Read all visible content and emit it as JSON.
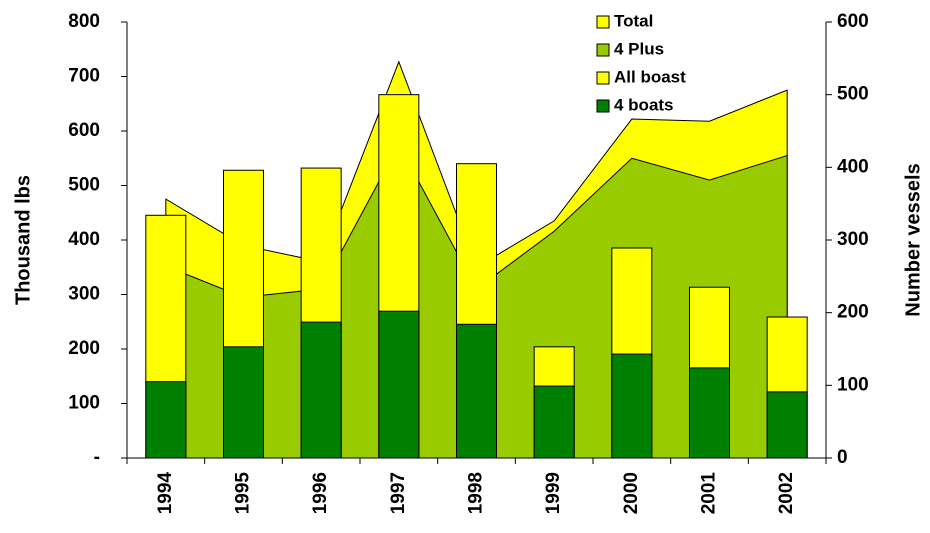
{
  "chart_data": {
    "type": "bar-area",
    "y_label": "Thousand lbs",
    "y2_label": "Number vessels",
    "categories": [
      "1994",
      "1995",
      "1996",
      "1997",
      "1998",
      "1999",
      "2000",
      "2001",
      "2002"
    ],
    "series": [
      {
        "name": "Total",
        "kind": "area",
        "color": "#ffff00",
        "values": [
          475,
          390,
          360,
          727,
          350,
          435,
          622,
          618,
          675
        ]
      },
      {
        "name": "4  Plus",
        "kind": "area",
        "color": "#99cc00",
        "values": [
          352,
          295,
          310,
          575,
          310,
          416,
          550,
          510,
          555
        ]
      },
      {
        "name": "All boast",
        "kind": "bar",
        "axis": "y2",
        "color": "#ffff00",
        "values": [
          334,
          396,
          399,
          500,
          405,
          153,
          289,
          235,
          194
        ]
      },
      {
        "name": "4  boats",
        "kind": "bar",
        "axis": "y2",
        "color": "#008000",
        "values": [
          105,
          153,
          187,
          202,
          184,
          99,
          143,
          124,
          91
        ]
      }
    ],
    "ylim": [
      0,
      800
    ],
    "yticks": [
      {
        "value": 0,
        "label": "-"
      },
      100,
      200,
      300,
      400,
      500,
      600,
      700,
      800
    ],
    "y2lim": [
      0,
      600
    ],
    "y2ticks": [
      0,
      100,
      200,
      300,
      400,
      500,
      600
    ],
    "legend": "top-right"
  }
}
